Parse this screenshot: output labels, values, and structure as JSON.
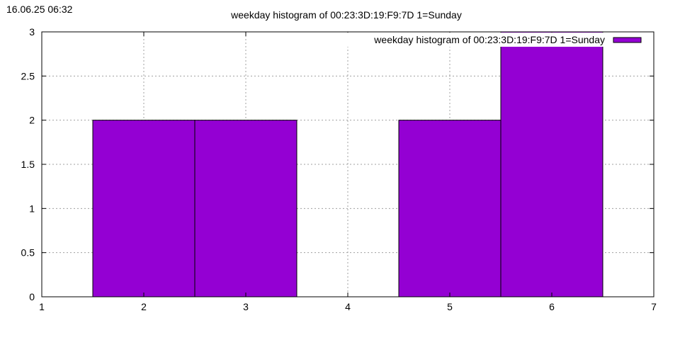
{
  "timestamp": "16.06.25 06:32",
  "chart_data": {
    "type": "bar",
    "title": "weekday histogram of 00:23:3D:19:F9:7D 1=Sunday",
    "legend": {
      "label": "weekday histogram of 00:23:3D:19:F9:7D 1=Sunday",
      "position": "top-right"
    },
    "xlim": [
      1,
      7
    ],
    "ylim": [
      0,
      3
    ],
    "x_ticks": [
      "1",
      "2",
      "3",
      "4",
      "5",
      "6",
      "7"
    ],
    "y_ticks": [
      "0",
      "0.5",
      "1",
      "1.5",
      "2",
      "2.5",
      "3"
    ],
    "categories": [
      "2",
      "3",
      "5",
      "6"
    ],
    "values": [
      2,
      2,
      2,
      3
    ],
    "bar_width": 1,
    "grid": true,
    "bar_color": "#9400d3"
  }
}
